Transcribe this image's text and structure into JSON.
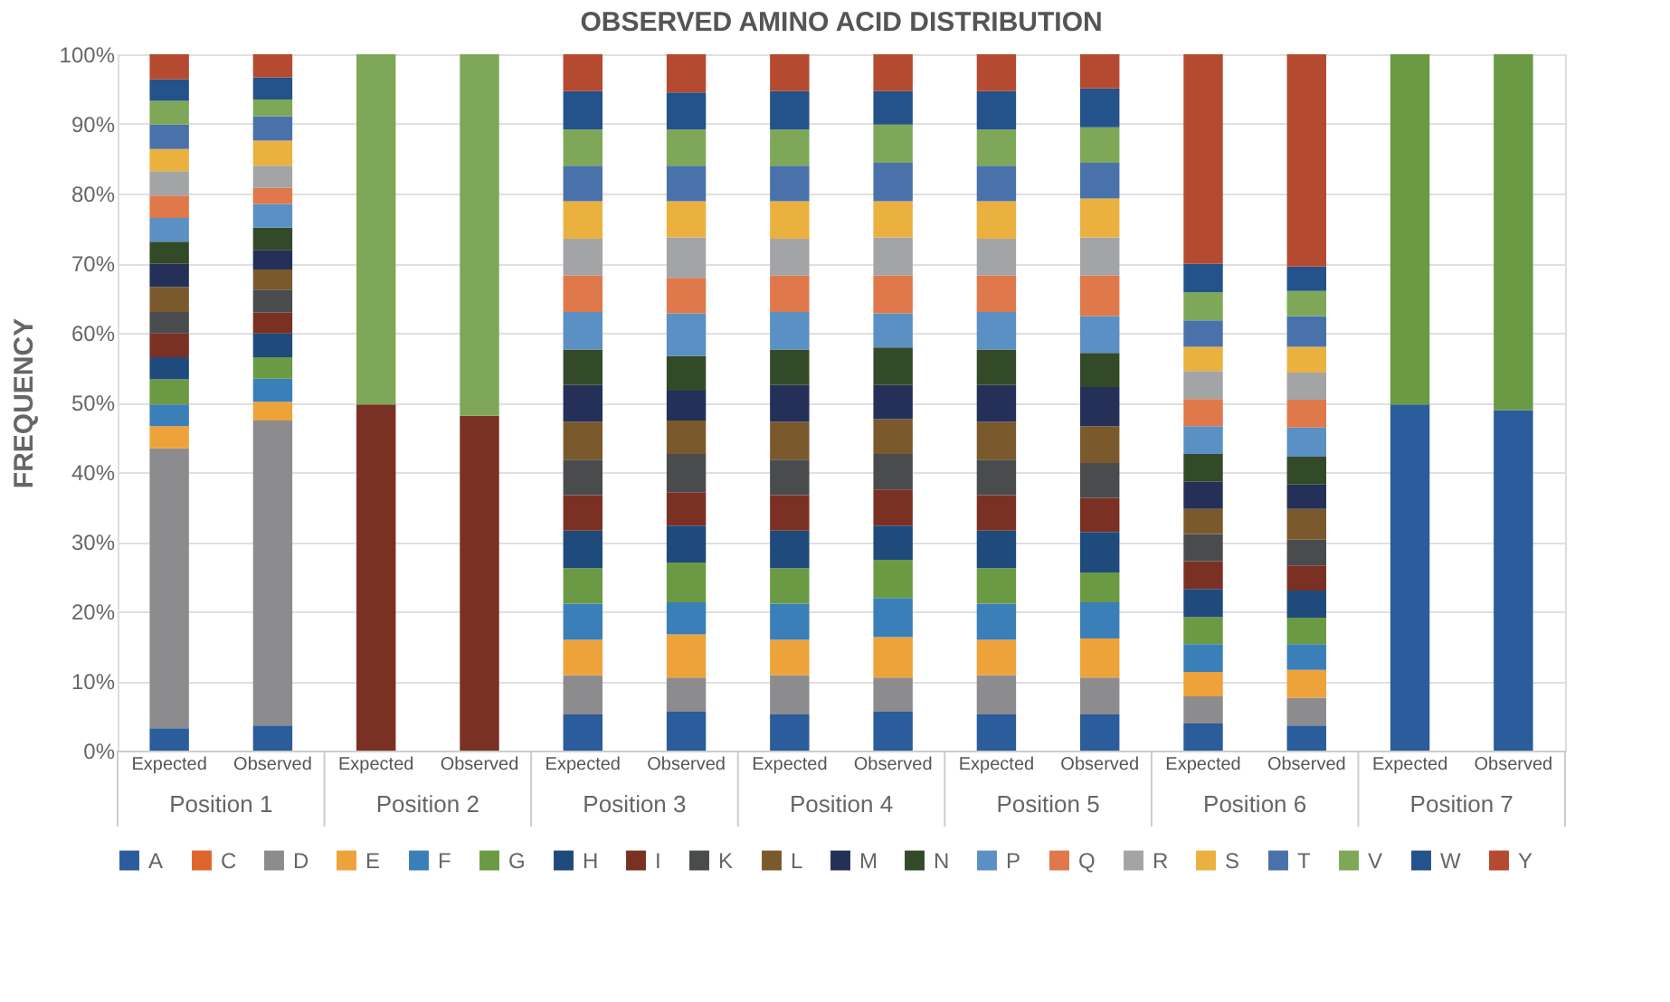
{
  "chart_data": {
    "type": "bar",
    "title": "OBSERVED AMINO ACID DISTRIBUTION",
    "ylabel": "FREQUENCY",
    "stacked": true,
    "grid": "y",
    "legend": "bottom",
    "categories": [
      "Expected",
      "Observed",
      "Expected",
      "Observed",
      "Expected",
      "Observed",
      "Expected",
      "Observed",
      "Expected",
      "Observed",
      "Expected",
      "Observed",
      "Expected",
      "Observed"
    ],
    "annotations": [
      "Position 1",
      "Position 2",
      "Position 3",
      "Position 4",
      "Position 5",
      "Position 6",
      "Position 7"
    ],
    "ylim": [
      0,
      100
    ],
    "yticks": [
      {
        "value": 0,
        "label": "0%"
      },
      {
        "value": 10,
        "label": "10%"
      },
      {
        "value": 20,
        "label": "20%"
      },
      {
        "value": 30,
        "label": "30%"
      },
      {
        "value": 40,
        "label": "40%"
      },
      {
        "value": 50,
        "label": "50%"
      },
      {
        "value": 60,
        "label": "60%"
      },
      {
        "value": 70,
        "label": "70%"
      },
      {
        "value": 80,
        "label": "80%"
      },
      {
        "value": 90,
        "label": "90%"
      },
      {
        "value": 100,
        "label": "100%"
      }
    ],
    "series": [
      {
        "name": "A",
        "color": "#2b5c9b",
        "values": [
          3.2,
          3.6,
          0,
          0,
          5.2,
          5.6,
          5.2,
          5.6,
          5.2,
          5.2,
          3.9,
          3.6,
          49.7,
          48.9
        ]
      },
      {
        "name": "C",
        "color": "#e0652d",
        "values": [
          0,
          0,
          0,
          0,
          0,
          0,
          0,
          0,
          0,
          0,
          0,
          0,
          0,
          0
        ]
      },
      {
        "name": "D",
        "color": "#8c8c8e",
        "values": [
          40.2,
          43.8,
          0,
          0,
          5.6,
          4.9,
          5.6,
          4.9,
          5.6,
          5.3,
          3.9,
          4.0,
          0,
          0
        ]
      },
      {
        "name": "E",
        "color": "#eea23a",
        "values": [
          3.2,
          2.7,
          0,
          0,
          5.1,
          6.2,
          5.1,
          5.8,
          5.1,
          5.6,
          3.5,
          4.0,
          0,
          0
        ]
      },
      {
        "name": "F",
        "color": "#3a7fb8",
        "values": [
          3.1,
          3.3,
          0,
          0,
          5.2,
          4.6,
          5.2,
          5.6,
          5.2,
          5.2,
          4.0,
          3.7,
          0,
          0
        ]
      },
      {
        "name": "G",
        "color": "#6a9a44",
        "values": [
          3.6,
          3.1,
          0,
          0,
          5.1,
          5.7,
          5.1,
          5.5,
          5.1,
          4.3,
          3.9,
          3.8,
          50.3,
          51.1
        ]
      },
      {
        "name": "H",
        "color": "#1f4a7c",
        "values": [
          3.2,
          3.4,
          0,
          0,
          5.4,
          5.3,
          5.4,
          4.9,
          5.4,
          5.8,
          4.0,
          3.9,
          0,
          0
        ]
      },
      {
        "name": "I",
        "color": "#7b3024",
        "values": [
          3.4,
          3.0,
          49.7,
          48.1,
          5.1,
          4.8,
          5.1,
          5.2,
          5.1,
          4.9,
          4.0,
          3.6,
          0,
          0
        ]
      },
      {
        "name": "K",
        "color": "#4a4b4d",
        "values": [
          3.1,
          3.3,
          0,
          0,
          5.1,
          5.5,
          5.1,
          5.1,
          5.1,
          5.0,
          3.9,
          3.7,
          0,
          0
        ]
      },
      {
        "name": "L",
        "color": "#7a5a2c",
        "values": [
          3.6,
          2.9,
          0,
          0,
          5.4,
          4.8,
          5.4,
          5.0,
          5.4,
          5.3,
          3.6,
          4.4,
          0,
          0
        ]
      },
      {
        "name": "M",
        "color": "#243058",
        "values": [
          3.3,
          2.8,
          0,
          0,
          5.3,
          4.3,
          5.3,
          4.9,
          5.3,
          5.6,
          3.9,
          3.5,
          0,
          0
        ]
      },
      {
        "name": "N",
        "color": "#334a28",
        "values": [
          3.2,
          3.2,
          0,
          0,
          5.1,
          5.0,
          5.1,
          5.4,
          5.1,
          4.9,
          4.0,
          4.0,
          0,
          0
        ]
      },
      {
        "name": "P",
        "color": "#5a90c4",
        "values": [
          3.4,
          3.4,
          0,
          0,
          5.4,
          6.1,
          5.4,
          4.9,
          5.4,
          5.3,
          4.0,
          4.2,
          0,
          0
        ]
      },
      {
        "name": "Q",
        "color": "#df784b",
        "values": [
          3.2,
          2.3,
          0,
          0,
          5.2,
          5.1,
          5.2,
          5.4,
          5.2,
          5.8,
          3.9,
          4.0,
          0,
          0
        ]
      },
      {
        "name": "R",
        "color": "#a3a4a6",
        "values": [
          3.5,
          3.2,
          0,
          0,
          5.3,
          5.8,
          5.3,
          5.5,
          5.3,
          5.5,
          4.0,
          3.9,
          0,
          0
        ]
      },
      {
        "name": "S",
        "color": "#ebb13f",
        "values": [
          3.2,
          3.6,
          0,
          0,
          5.4,
          5.2,
          5.4,
          5.2,
          5.4,
          5.6,
          3.5,
          3.7,
          0,
          0
        ]
      },
      {
        "name": "T",
        "color": "#4a72aa",
        "values": [
          3.5,
          3.5,
          0,
          0,
          5.1,
          5.1,
          5.1,
          5.5,
          5.1,
          5.1,
          3.8,
          4.4,
          0,
          0
        ]
      },
      {
        "name": "V",
        "color": "#7ea857",
        "values": [
          3.4,
          2.4,
          50.3,
          51.9,
          5.2,
          5.2,
          5.2,
          5.5,
          5.2,
          5.1,
          4.0,
          3.6,
          0,
          0
        ]
      },
      {
        "name": "W",
        "color": "#24528a",
        "values": [
          3.1,
          3.2,
          0,
          0,
          5.5,
          5.3,
          5.5,
          4.8,
          5.5,
          5.6,
          4.1,
          3.5,
          0,
          0
        ]
      },
      {
        "name": "Y",
        "color": "#b44a30",
        "values": [
          3.6,
          3.3,
          0,
          0,
          5.3,
          5.5,
          5.3,
          5.3,
          5.3,
          4.9,
          30.1,
          30.5,
          0,
          0
        ]
      }
    ]
  }
}
